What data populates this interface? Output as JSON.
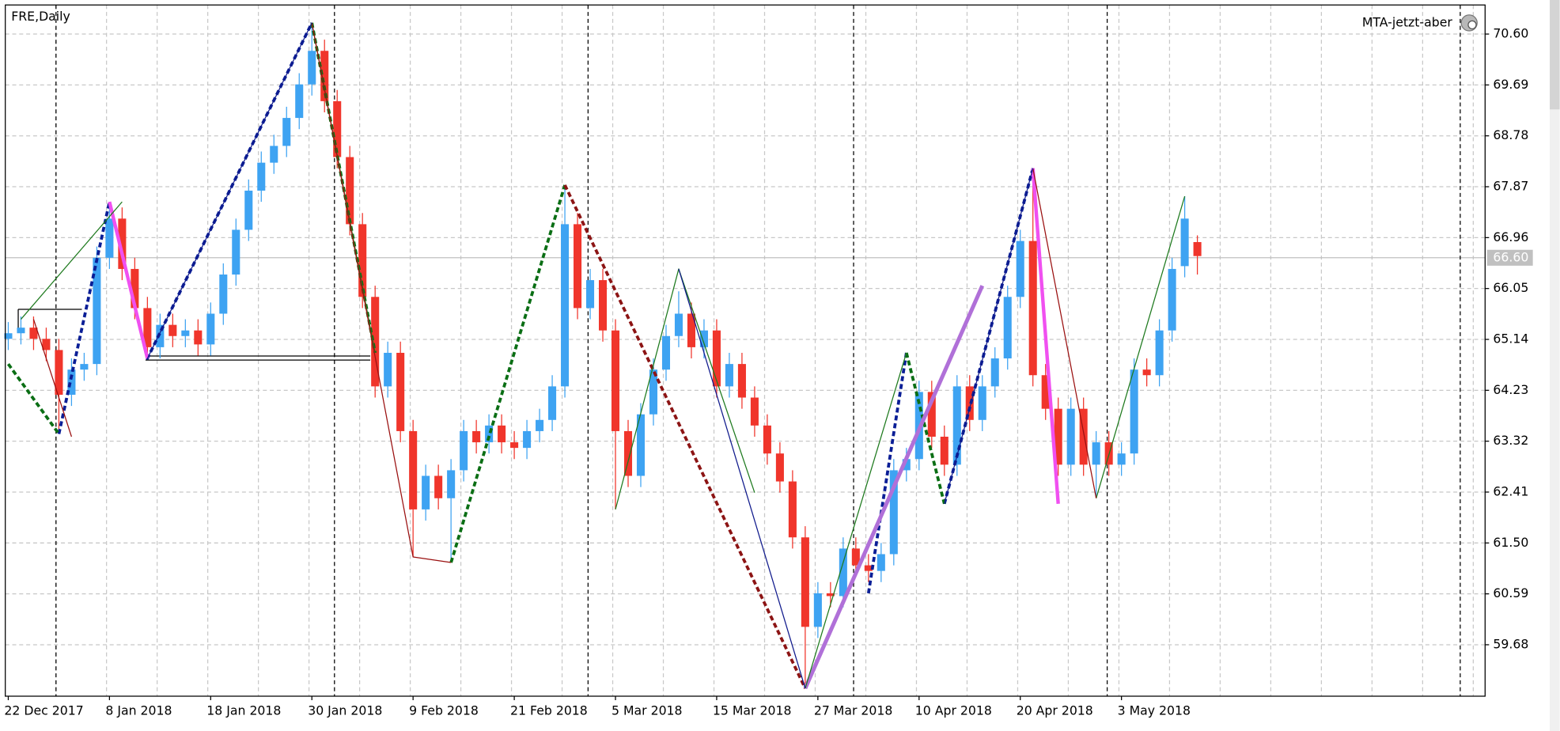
{
  "chart_data": {
    "type": "candlestick",
    "title": "FRE,Daily",
    "annotation": "MTA-jetzt-aber",
    "categories": [
      "22 Dec 2017",
      null,
      null,
      null,
      null,
      null,
      null,
      null,
      "8 Jan 2018",
      null,
      null,
      null,
      null,
      null,
      null,
      null,
      "18 Jan 2018",
      null,
      null,
      null,
      null,
      null,
      null,
      null,
      "30 Jan 2018",
      null,
      null,
      null,
      null,
      null,
      null,
      null,
      "9 Feb 2018",
      null,
      null,
      null,
      null,
      null,
      null,
      null,
      "21 Feb 2018",
      null,
      null,
      null,
      null,
      null,
      null,
      null,
      "5 Mar 2018",
      null,
      null,
      null,
      null,
      null,
      null,
      null,
      "15 Mar 2018",
      null,
      null,
      null,
      null,
      null,
      null,
      null,
      "27 Mar 2018",
      null,
      null,
      null,
      null,
      null,
      null,
      null,
      "10 Apr 2018",
      null,
      null,
      null,
      null,
      null,
      null,
      null,
      "20 Apr 2018",
      null,
      null,
      null,
      null,
      null,
      null,
      null,
      "3 May 2018",
      null,
      null,
      null,
      null,
      null,
      null
    ],
    "open": [
      65.15,
      65.25,
      65.35,
      65.15,
      64.95,
      64.15,
      64.6,
      64.7,
      66.6,
      67.3,
      66.4,
      65.7,
      65.0,
      65.4,
      65.2,
      65.3,
      65.05,
      65.6,
      66.3,
      67.1,
      67.8,
      68.3,
      68.6,
      69.1,
      69.7,
      70.3,
      69.4,
      68.4,
      67.2,
      65.9,
      64.3,
      64.9,
      63.5,
      62.1,
      62.7,
      62.3,
      62.8,
      63.5,
      63.3,
      63.6,
      63.3,
      63.2,
      63.5,
      63.7,
      64.3,
      67.2,
      65.7,
      66.2,
      65.3,
      63.5,
      62.7,
      63.8,
      64.6,
      65.2,
      65.6,
      65.0,
      65.3,
      64.3,
      64.7,
      64.1,
      63.6,
      63.1,
      62.6,
      61.6,
      60.0,
      60.6,
      60.55,
      61.4,
      61.1,
      61.0,
      61.3,
      62.8,
      63.0,
      64.2,
      63.4,
      62.9,
      64.3,
      63.7,
      64.3,
      64.8,
      65.9,
      66.9,
      64.5,
      63.9,
      62.9,
      63.9,
      62.9,
      63.3,
      62.9,
      63.1,
      64.6,
      64.5,
      65.3,
      66.45,
      66.88
    ],
    "high": [
      65.45,
      65.55,
      65.55,
      65.35,
      65.15,
      64.8,
      64.9,
      66.8,
      67.6,
      67.5,
      66.6,
      65.9,
      65.6,
      65.6,
      65.5,
      65.5,
      65.8,
      66.5,
      67.3,
      68.0,
      68.5,
      68.8,
      69.3,
      69.9,
      70.8,
      70.5,
      69.6,
      68.6,
      67.4,
      66.1,
      65.1,
      65.1,
      63.7,
      62.9,
      62.9,
      63.0,
      63.7,
      63.7,
      63.8,
      63.8,
      63.5,
      63.7,
      63.9,
      64.5,
      67.9,
      67.4,
      66.4,
      66.4,
      65.5,
      63.7,
      64.0,
      64.8,
      65.4,
      66.0,
      65.8,
      65.5,
      65.5,
      64.9,
      64.9,
      64.3,
      63.8,
      63.3,
      62.8,
      61.8,
      60.8,
      60.8,
      61.6,
      61.6,
      61.3,
      61.5,
      63.0,
      63.2,
      64.4,
      64.4,
      63.6,
      64.5,
      64.5,
      64.5,
      65.0,
      66.1,
      67.1,
      68.2,
      64.7,
      64.1,
      64.1,
      64.1,
      63.5,
      63.5,
      63.3,
      64.8,
      64.8,
      65.5,
      66.6,
      67.7,
      67.0
    ],
    "low": [
      64.95,
      65.05,
      64.95,
      64.75,
      63.45,
      63.95,
      64.4,
      64.5,
      66.4,
      66.2,
      65.5,
      64.8,
      64.8,
      65.0,
      65.0,
      64.85,
      64.85,
      65.4,
      66.1,
      66.9,
      67.6,
      68.1,
      68.4,
      68.9,
      69.5,
      69.2,
      68.2,
      67.0,
      65.7,
      64.1,
      64.1,
      63.3,
      61.25,
      61.9,
      62.1,
      61.15,
      62.6,
      63.1,
      63.1,
      63.1,
      63.0,
      63.0,
      63.3,
      63.5,
      64.1,
      65.5,
      65.5,
      65.1,
      62.1,
      62.5,
      62.5,
      63.6,
      64.4,
      65.0,
      64.8,
      64.8,
      64.1,
      64.1,
      63.9,
      63.4,
      62.9,
      62.4,
      61.4,
      58.9,
      59.8,
      60.35,
      60.35,
      60.9,
      60.8,
      60.8,
      61.1,
      62.6,
      62.8,
      63.2,
      62.7,
      62.7,
      63.5,
      63.5,
      64.1,
      64.6,
      65.7,
      64.3,
      63.7,
      62.7,
      62.7,
      62.7,
      62.3,
      62.7,
      62.7,
      62.9,
      64.3,
      64.3,
      65.1,
      66.25,
      66.3
    ],
    "close": [
      65.25,
      65.35,
      65.15,
      64.95,
      64.15,
      64.6,
      64.7,
      66.6,
      67.3,
      66.4,
      65.7,
      65.0,
      65.4,
      65.2,
      65.3,
      65.05,
      65.6,
      66.3,
      67.1,
      67.8,
      68.3,
      68.6,
      69.1,
      69.7,
      70.3,
      69.4,
      68.4,
      67.2,
      65.9,
      64.3,
      64.9,
      63.5,
      62.1,
      62.7,
      62.3,
      62.8,
      63.5,
      63.3,
      63.6,
      63.3,
      63.2,
      63.5,
      63.7,
      64.3,
      67.2,
      65.7,
      66.2,
      65.3,
      63.5,
      62.7,
      63.8,
      64.6,
      65.2,
      65.6,
      65.0,
      65.3,
      64.3,
      64.7,
      64.1,
      63.6,
      63.1,
      62.6,
      61.6,
      60.0,
      60.6,
      60.55,
      61.4,
      61.1,
      61.0,
      61.3,
      62.8,
      63.0,
      64.2,
      63.4,
      62.9,
      64.3,
      63.7,
      64.3,
      64.8,
      65.9,
      66.9,
      64.5,
      63.9,
      62.9,
      63.9,
      62.9,
      63.3,
      62.9,
      63.1,
      64.6,
      64.5,
      65.3,
      66.4,
      67.3,
      66.63
    ],
    "up_color": "#3ea3f2",
    "down_color": "#f0352b",
    "ylim": [
      58.76,
      71.12
    ],
    "yticks": [
      {
        "value": 59.68,
        "label": "59.68"
      },
      {
        "value": 60.59,
        "label": "60.59"
      },
      {
        "value": 61.5,
        "label": "61.50"
      },
      {
        "value": 62.41,
        "label": "62.41"
      },
      {
        "value": 63.32,
        "label": "63.32"
      },
      {
        "value": 64.23,
        "label": "64.23"
      },
      {
        "value": 65.14,
        "label": "65.14"
      },
      {
        "value": 66.05,
        "label": "66.05"
      },
      {
        "value": 66.96,
        "label": "66.96"
      },
      {
        "value": 67.87,
        "label": "67.87"
      },
      {
        "value": 68.78,
        "label": "68.78"
      },
      {
        "value": 69.69,
        "label": "69.69"
      },
      {
        "value": 70.6,
        "label": "70.60"
      }
    ],
    "grid": true,
    "current_price": {
      "value": 66.6,
      "label": "66.60"
    },
    "current_price_color": "#c0c0c0",
    "overlays": [
      {
        "color": "#0a1e96",
        "width": 3,
        "dashed": true,
        "x": [
          4,
          8,
          11,
          24,
          null,
          68,
          71,
          null,
          74,
          81
        ],
        "y": [
          63.45,
          67.6,
          64.8,
          70.8,
          null,
          60.6,
          64.9,
          null,
          62.2,
          68.2
        ]
      },
      {
        "color": "#0a6e14",
        "width": 3,
        "dashed": true,
        "x": [
          0,
          4,
          null,
          24,
          29,
          null,
          35,
          44,
          null,
          71,
          74
        ],
        "y": [
          64.7,
          63.45,
          null,
          70.8,
          64.9,
          null,
          61.15,
          67.9,
          null,
          64.9,
          62.2
        ]
      },
      {
        "color": "#8c1414",
        "width": 3,
        "dashed": true,
        "x": [
          44,
          63
        ],
        "y": [
          67.9,
          58.9
        ]
      },
      {
        "color": "#f050f0",
        "width": 3.5,
        "dashed": false,
        "x": [
          8,
          11,
          null,
          81,
          83
        ],
        "y": [
          67.6,
          64.8,
          null,
          68.2,
          62.2
        ]
      },
      {
        "color": "#b070d8",
        "width": 4,
        "dashed": false,
        "x": [
          63,
          77
        ],
        "y": [
          58.9,
          66.1
        ]
      },
      {
        "color": "#1e7a1e",
        "width": 1,
        "dashed": false,
        "x": [
          1,
          9,
          null,
          24,
          29,
          null,
          48,
          53,
          59,
          null,
          63,
          71,
          null,
          86,
          93
        ],
        "y": [
          65.5,
          67.6,
          null,
          70.8,
          64.9,
          null,
          62.1,
          66.4,
          62.4,
          null,
          58.9,
          64.9,
          null,
          62.3,
          67.7
        ]
      },
      {
        "color": "#9a1010",
        "width": 1,
        "dashed": false,
        "x": [
          2,
          5,
          null,
          24,
          32,
          35,
          null,
          81,
          86
        ],
        "y": [
          65.5,
          63.4,
          null,
          70.8,
          61.25,
          61.15,
          null,
          68.2,
          62.3
        ]
      },
      {
        "color": "#101a8c",
        "width": 1,
        "dashed": false,
        "x": [
          11,
          24,
          null,
          53,
          63,
          null,
          74,
          81
        ],
        "y": [
          64.8,
          70.8,
          null,
          66.4,
          58.9,
          null,
          62.2,
          68.2
        ]
      }
    ]
  }
}
